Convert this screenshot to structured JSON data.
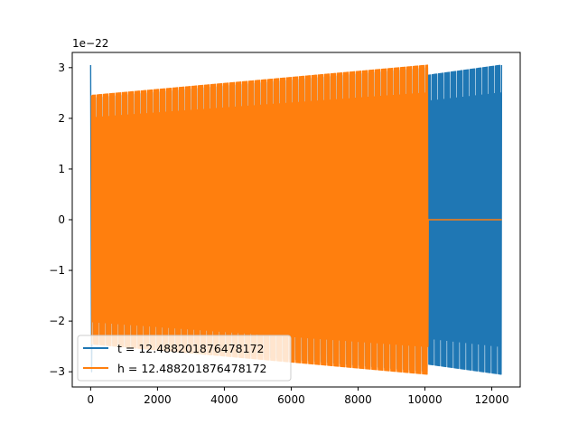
{
  "chart_data": {
    "type": "line",
    "offset_text": "1e−22",
    "xlim": [
      -550,
      12850
    ],
    "ylim": [
      -3.3,
      3.3
    ],
    "x_ticks": [
      0,
      2000,
      4000,
      6000,
      8000,
      10000,
      12000
    ],
    "x_tick_labels": [
      "0",
      "2000",
      "4000",
      "6000",
      "8000",
      "10000",
      "12000"
    ],
    "y_ticks": [
      -3,
      -2,
      -1,
      0,
      1,
      2,
      3
    ],
    "y_tick_labels": [
      "−3",
      "−2",
      "−1",
      "0",
      "1",
      "2",
      "3"
    ],
    "grid": false,
    "legend_position": "lower-left",
    "series": [
      {
        "name": "t = 12.488201876478172",
        "color": "#1f77b4",
        "x_range": [
          0,
          12300
        ],
        "oscillation": "dense",
        "initial_spike": {
          "x": [
            0,
            30,
            60
          ],
          "y": [
            3.05,
            -3.0,
            -0.3
          ]
        },
        "envelope": {
          "x": [
            0,
            10100,
            10100,
            12300
          ],
          "amplitude": [
            2.4,
            3.0,
            2.85,
            3.05
          ]
        }
      },
      {
        "name": "h = 12.488201876478172",
        "color": "#ff7f0e",
        "x_range": [
          0,
          10100
        ],
        "oscillation": "dense",
        "envelope": {
          "x": [
            0,
            10100
          ],
          "amplitude": [
            2.45,
            3.05
          ]
        },
        "flat_after": {
          "x": [
            10100,
            12300
          ],
          "y": 0
        }
      }
    ]
  }
}
